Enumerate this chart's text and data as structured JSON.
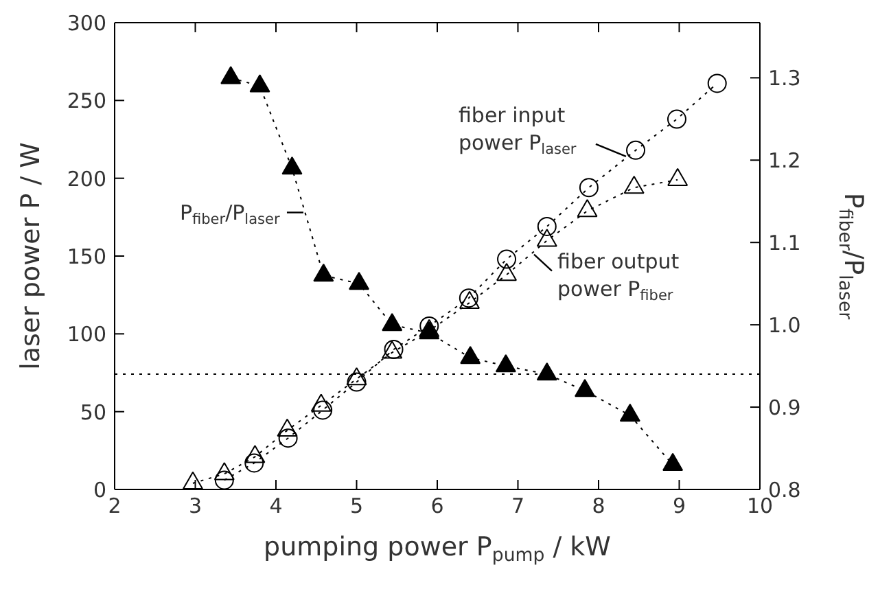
{
  "chart_data": {
    "type": "line",
    "xlabel": "pumping power P$_{pump}$ / kW",
    "ylabel": "laser power P / W",
    "y2label": "P$_{fiber}$/P$_{laser}$",
    "xlim": [
      2,
      10
    ],
    "xticks": [
      2,
      3,
      4,
      5,
      6,
      7,
      8,
      9,
      10
    ],
    "ylim": [
      0,
      300
    ],
    "yticks": [
      0,
      50,
      100,
      150,
      200,
      250,
      300
    ],
    "y2lim": [
      0.8,
      1.367
    ],
    "y2ticks": [
      0.8,
      0.9,
      {
        "value": 1.0,
        "label": "1.0"
      },
      1.1,
      1.2,
      1.3
    ],
    "grid": false,
    "line_style": "dotted",
    "series": [
      {
        "color": "#000000",
        "marker": "circle",
        "x": [
          3.36,
          3.73,
          4.15,
          4.58,
          5.0,
          5.46,
          5.9,
          6.39,
          6.86,
          7.36,
          7.88,
          8.46,
          8.97,
          9.47
        ],
        "values": [
          6,
          17,
          33,
          51,
          69,
          90,
          105,
          123,
          148,
          169,
          194,
          218,
          238,
          261
        ]
      },
      {
        "color": "#000000",
        "marker": "triangle",
        "x": [
          2.97,
          3.36,
          3.74,
          4.14,
          4.56,
          5.0,
          5.44,
          5.9,
          6.4,
          6.86,
          7.36,
          7.86,
          8.44,
          8.98
        ],
        "values": [
          4,
          10,
          21,
          38,
          54,
          71,
          88,
          102,
          120,
          138,
          160,
          179,
          194,
          199
        ]
      },
      {
        "color": "#000000",
        "marker": "triangle",
        "axis": "y2",
        "x": [
          3.44,
          3.8,
          4.2,
          4.59,
          5.03,
          5.44,
          5.9,
          6.41,
          6.85,
          7.36,
          7.83,
          8.39,
          8.92
        ],
        "values": [
          1.3,
          1.29,
          1.19,
          1.06,
          1.05,
          1.0,
          0.99,
          0.96,
          0.95,
          0.94,
          0.92,
          0.89,
          0.83
        ]
      }
    ],
    "ref_lines": [
      {
        "axis": "y2",
        "value": 0.94,
        "line_style": "dotted",
        "color": "#000000"
      }
    ],
    "annotations": [
      {
        "text": "fiber input power P$_{laser}$",
        "x": 8.34,
        "y": 214
      },
      {
        "text": "fiber output power P$_{fiber}$",
        "x": 7.2,
        "y": 151
      },
      {
        "text": "P$_{fiber}$/P$_{laser}$",
        "x": 4.34,
        "y": 178
      }
    ]
  }
}
